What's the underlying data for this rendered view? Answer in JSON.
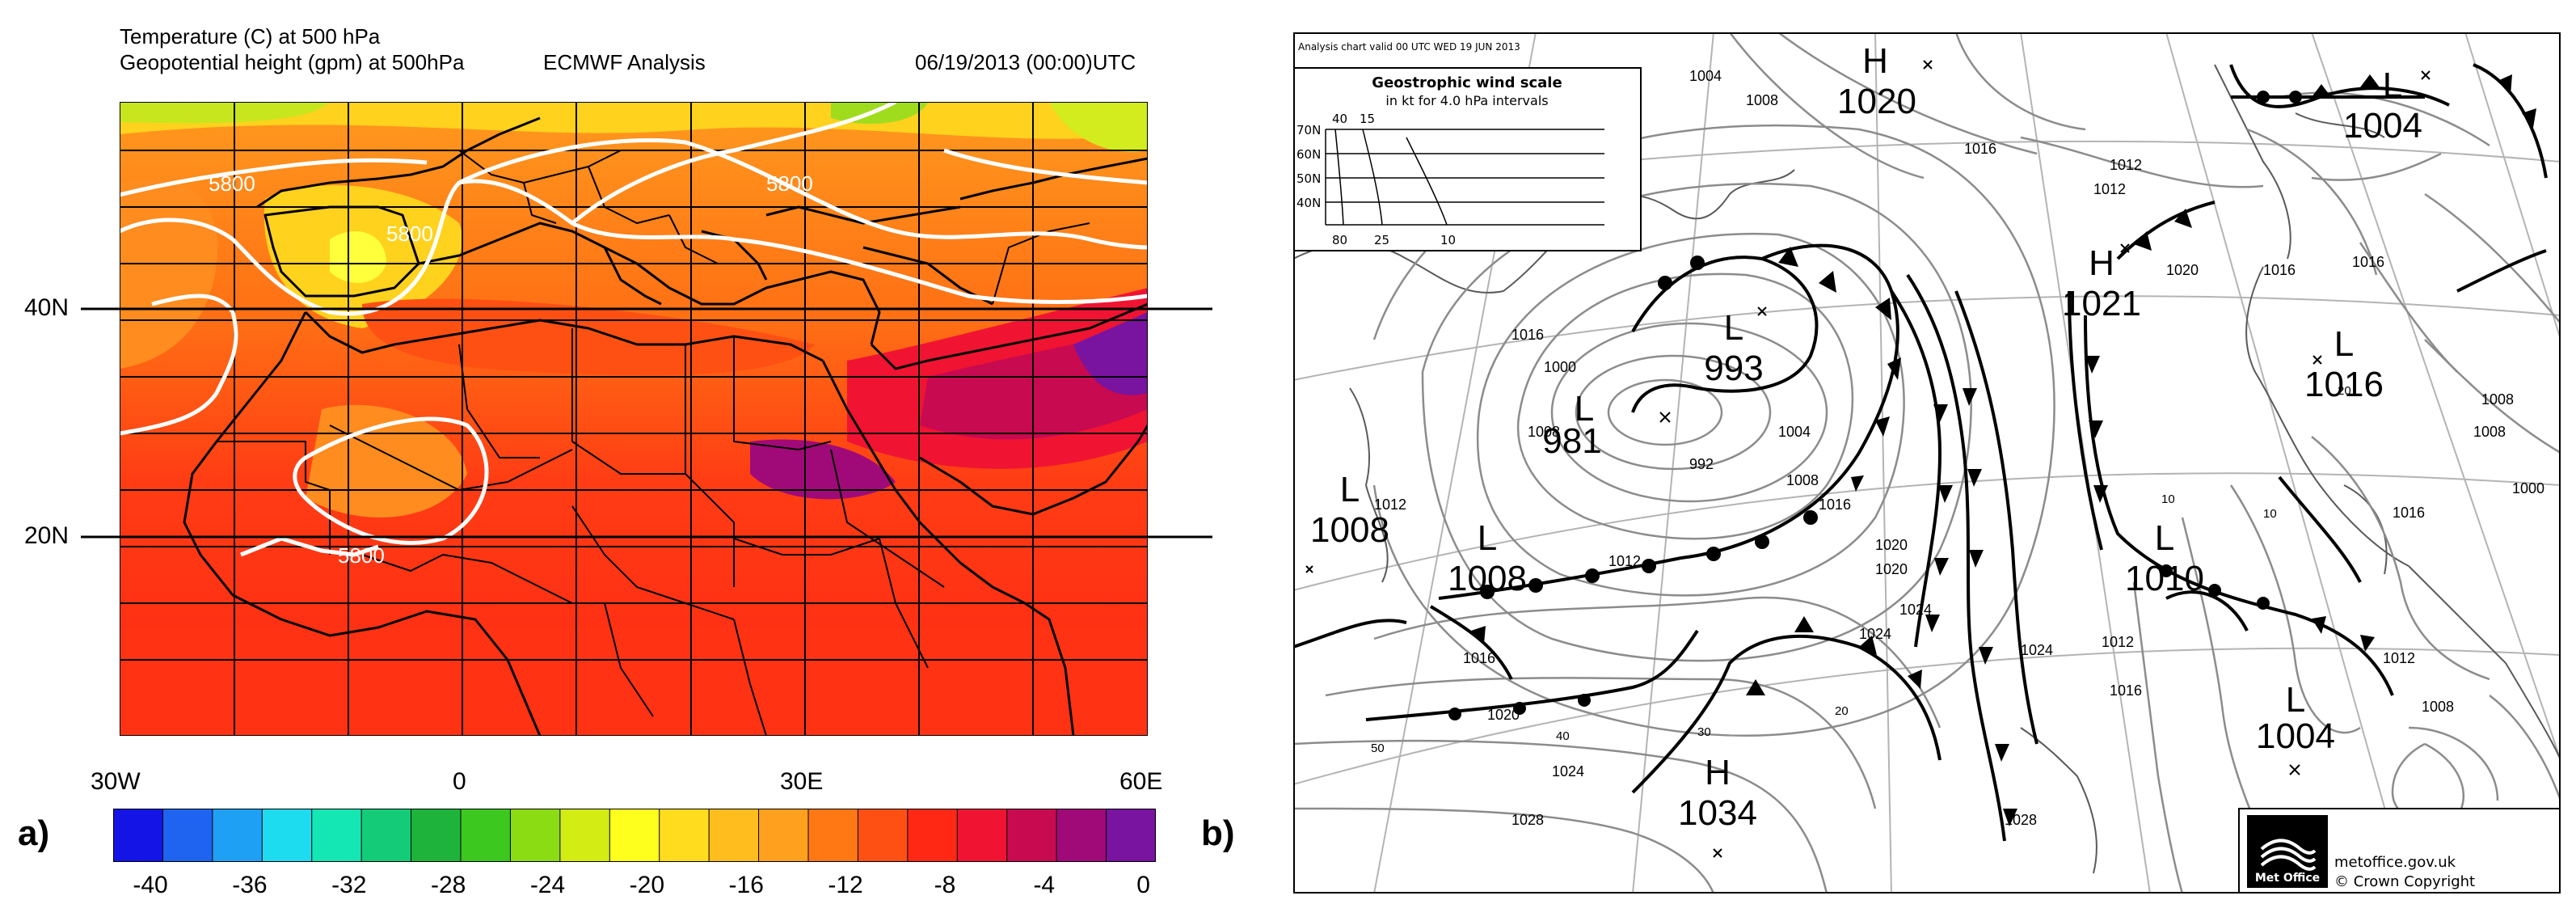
{
  "panel_a": {
    "label": "a)",
    "header": {
      "line1": "Temperature (C) at 500 hPa",
      "line2": "Geopotential height (gpm) at 500hPa",
      "center": "ECMWF Analysis",
      "date": "06/19/2013 (00:00)UTC"
    },
    "lat_labels": [
      "40N",
      "20N"
    ],
    "lon_labels": [
      "30W",
      "0",
      "30E",
      "60E"
    ],
    "contour_labels": [
      "5800",
      "5800",
      "5800",
      "5800"
    ],
    "colorbar": {
      "ticks": [
        "-40",
        "-36",
        "-32",
        "-28",
        "-24",
        "-20",
        "-16",
        "-12",
        "-8",
        "-4",
        "0"
      ],
      "colors": [
        "#1414e6",
        "#1e64f0",
        "#1ea0f5",
        "#1edcf0",
        "#14e6b4",
        "#14cc78",
        "#1eb43c",
        "#3cc81e",
        "#8cdc14",
        "#d2ec14",
        "#ffff1e",
        "#ffdc1e",
        "#ffbe1e",
        "#ffa01e",
        "#ff7814",
        "#ff5014",
        "#ff2814",
        "#f01432",
        "#c80a50",
        "#a00a78",
        "#7814a0"
      ]
    }
  },
  "panel_b": {
    "label": "b)",
    "small_header": "Analysis chart  valid 00 UTC WED 19  JUN 2013",
    "wind_scale": {
      "title": "Geostrophic wind scale",
      "subtitle": "in kt for 4.0 hPa intervals",
      "lat_rows": [
        "70N",
        "60N",
        "50N",
        "40N"
      ],
      "top_ticks": [
        "40",
        "15"
      ],
      "bottom_ticks": [
        "80",
        "25",
        "10"
      ]
    },
    "pressure_systems": [
      {
        "type": "H",
        "value": "1020"
      },
      {
        "type": "L",
        "value": "1004"
      },
      {
        "type": "H",
        "value": "1021"
      },
      {
        "type": "L",
        "value": "993"
      },
      {
        "type": "L",
        "value": "981"
      },
      {
        "type": "L",
        "value": "1016"
      },
      {
        "type": "L",
        "value": "1008"
      },
      {
        "type": "L",
        "value": "1008"
      },
      {
        "type": "L",
        "value": "1010"
      },
      {
        "type": "L",
        "value": "1004"
      },
      {
        "type": "H",
        "value": "1034"
      }
    ],
    "isobar_labels": [
      "1004",
      "1008",
      "1016",
      "1012",
      "1016",
      "1020",
      "1016",
      "1008",
      "1012",
      "1008",
      "1000",
      "1000",
      "992",
      "1004",
      "1008",
      "1016",
      "1020",
      "1024",
      "1024",
      "1028",
      "1012",
      "1016",
      "1020",
      "1016",
      "1012",
      "1024",
      "1028",
      "1012",
      "1016",
      "1008",
      "1012",
      "1016",
      "1008",
      "1020",
      "1024"
    ],
    "latlon_labels": [
      "50",
      "40",
      "30",
      "20",
      "10",
      "10",
      "20"
    ],
    "logo_text": "Met Office",
    "footer_line1": "metoffice.gov.uk",
    "footer_line2": "© Crown Copyright"
  }
}
